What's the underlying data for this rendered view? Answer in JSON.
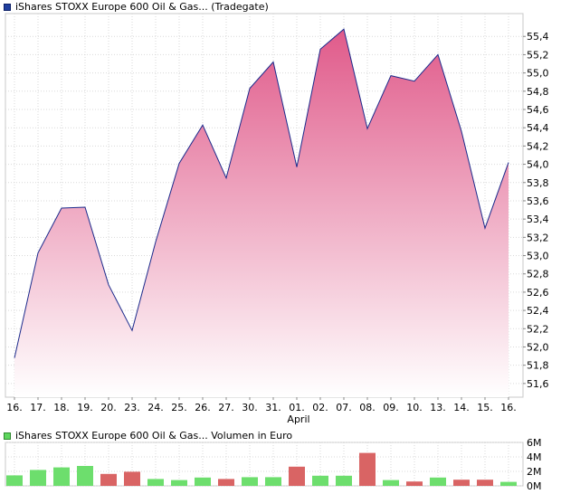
{
  "chart_data": [
    {
      "type": "area",
      "title": "iShares STOXX Europe 600 Oil & Gas... (Tradegate)",
      "x_label": "April",
      "x": [
        "16.",
        "17.",
        "18.",
        "19.",
        "20.",
        "23.",
        "24.",
        "25.",
        "26.",
        "27.",
        "30.",
        "31.",
        "01.",
        "02.",
        "07.",
        "08.",
        "09.",
        "10.",
        "13.",
        "14.",
        "15.",
        "16."
      ],
      "values": [
        51.88,
        53.03,
        53.52,
        53.53,
        52.68,
        52.18,
        53.15,
        54.01,
        54.43,
        53.85,
        54.83,
        55.12,
        53.97,
        55.26,
        55.48,
        54.39,
        54.97,
        54.91,
        55.2,
        54.36,
        53.3,
        54.02
      ],
      "y_ticks": [
        51.6,
        51.8,
        52.0,
        52.2,
        52.4,
        52.6,
        52.8,
        53.0,
        53.2,
        53.4,
        53.6,
        53.8,
        54.0,
        54.2,
        54.4,
        54.6,
        54.8,
        55.0,
        55.2,
        55.4
      ],
      "ylim": [
        51.45,
        55.65
      ],
      "grid": true,
      "colors": {
        "line": "#1c2b8c",
        "fill_top": "#e05a8a",
        "fill_bottom": "#ffffff"
      }
    },
    {
      "type": "bar",
      "title": "iShares STOXX Europe 600 Oil & Gas... Volumen in Euro",
      "x": [
        "16.",
        "17.",
        "18.",
        "19.",
        "20.",
        "23.",
        "24.",
        "25.",
        "26.",
        "27.",
        "30.",
        "31.",
        "01.",
        "02.",
        "07.",
        "08.",
        "09.",
        "10.",
        "13.",
        "14.",
        "15.",
        "16."
      ],
      "values": [
        1.45,
        2.2,
        2.55,
        2.75,
        1.65,
        1.95,
        0.95,
        0.8,
        1.15,
        0.95,
        1.2,
        1.2,
        2.65,
        1.4,
        1.4,
        4.55,
        0.8,
        0.6,
        1.15,
        0.85,
        0.85,
        0.55
      ],
      "colors": [
        "#6dde6d",
        "#6dde6d",
        "#6dde6d",
        "#6dde6d",
        "#d96464",
        "#d96464",
        "#6dde6d",
        "#6dde6d",
        "#6dde6d",
        "#d96464",
        "#6dde6d",
        "#6dde6d",
        "#d96464",
        "#6dde6d",
        "#6dde6d",
        "#d96464",
        "#6dde6d",
        "#d96464",
        "#6dde6d",
        "#d96464",
        "#d96464",
        "#6dde6d"
      ],
      "y_ticks": [
        "0M",
        "2M",
        "4M",
        "6M"
      ],
      "ylim": [
        0,
        6
      ],
      "grid": true
    }
  ]
}
